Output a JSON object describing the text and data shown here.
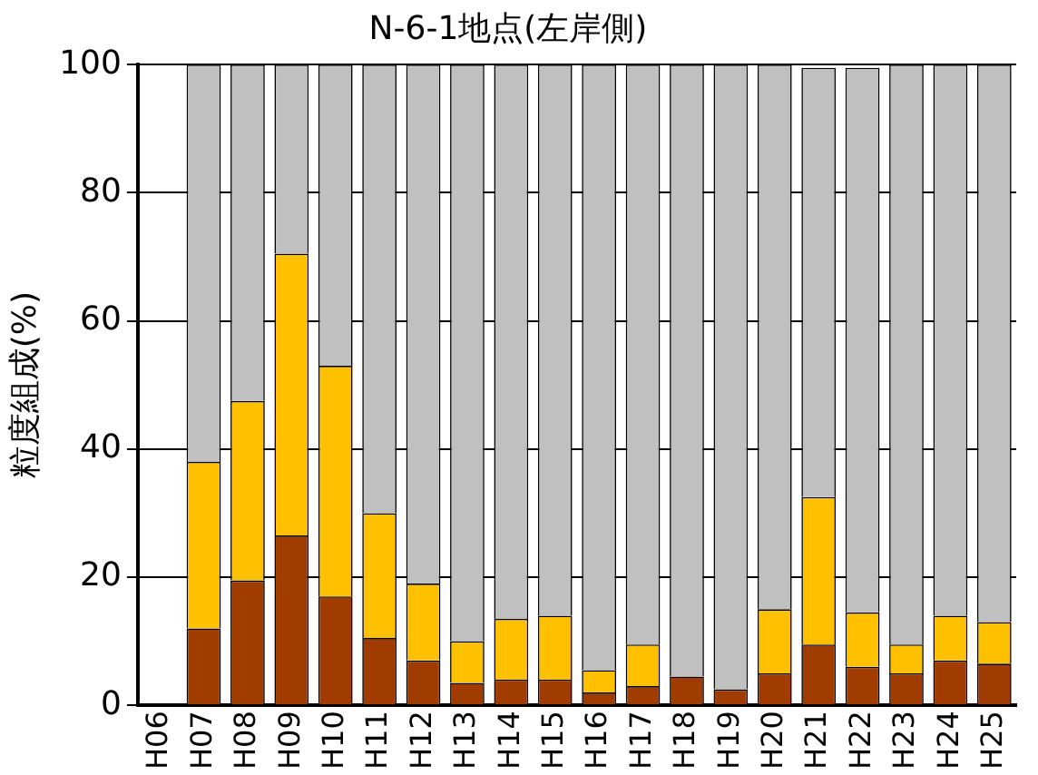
{
  "chart_data": {
    "type": "bar",
    "stacked": true,
    "title": "N-6-1地点(左岸側)",
    "ylabel": "粒度組成(%)",
    "categories": [
      "H06",
      "H07",
      "H08",
      "H09",
      "H10",
      "H11",
      "H12",
      "H13",
      "H14",
      "H15",
      "H16",
      "H17",
      "H18",
      "H19",
      "H20",
      "H21",
      "H22",
      "H23",
      "H24",
      "H25"
    ],
    "series": [
      {
        "color": "#a03c00",
        "values": [
          null,
          12,
          19.5,
          26.5,
          17,
          10.5,
          7,
          3.5,
          4,
          4,
          2,
          3,
          4.5,
          2.5,
          5,
          9.5,
          6,
          5,
          7,
          6.5
        ]
      },
      {
        "color": "#ffc000",
        "values": [
          null,
          26,
          28,
          44,
          36,
          19.5,
          12,
          6.5,
          9.5,
          10,
          3.5,
          6.5,
          0,
          0,
          10,
          23,
          8.5,
          4.5,
          7,
          6.5
        ]
      },
      {
        "color": "#c0c0c0",
        "values": [
          null,
          62,
          52.5,
          29.5,
          47,
          70,
          81,
          90,
          86.5,
          86,
          94.5,
          90.5,
          95.5,
          97.5,
          85,
          67,
          85,
          90.5,
          86,
          87
        ]
      }
    ],
    "ylim": [
      0,
      100
    ],
    "yticks": [
      0,
      20,
      40,
      60,
      80,
      100
    ],
    "grid": "y",
    "legend": false
  }
}
